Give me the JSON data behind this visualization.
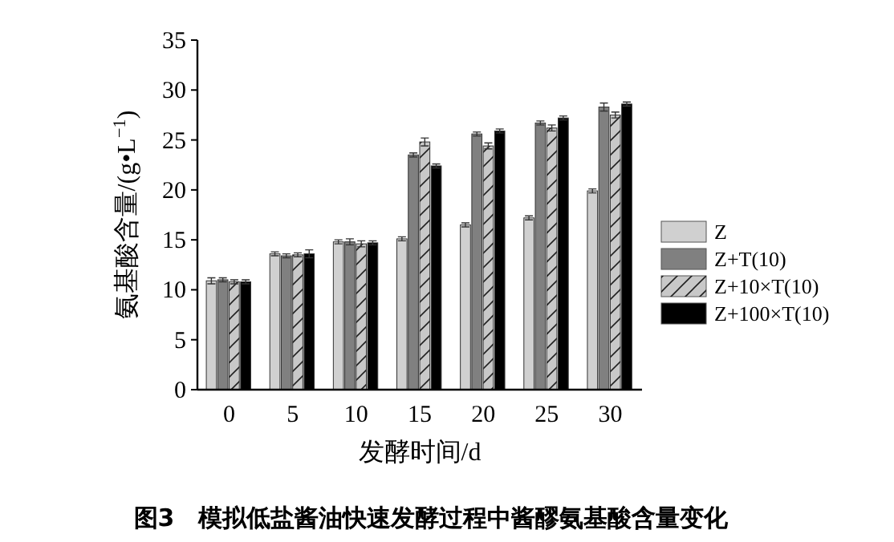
{
  "chart_data": {
    "type": "bar",
    "xlabel": "发酵时间/d",
    "ylabel": "氨基酸含量/(g•L$^{−1}$)",
    "annotations": [
      "图3　模拟低盐酱油快速发酵过程中酱醪氨基酸含量变化"
    ],
    "categories": [
      "0",
      "5",
      "10",
      "15",
      "20",
      "25",
      "30"
    ],
    "series": [
      {
        "name": "Z",
        "color": "#d0d0d0",
        "values": [
          10.9,
          13.6,
          14.8,
          15.1,
          16.5,
          17.2,
          19.9
        ],
        "errors": [
          0.3,
          0.2,
          0.2,
          0.2,
          0.2,
          0.2,
          0.2
        ]
      },
      {
        "name": "Z+T(10)",
        "color": "#808080",
        "values": [
          11.0,
          13.4,
          14.8,
          23.5,
          25.6,
          26.7,
          28.3
        ],
        "errors": [
          0.2,
          0.2,
          0.3,
          0.2,
          0.2,
          0.2,
          0.4
        ]
      },
      {
        "name": "Z+10×T(10)",
        "color": "#c8c8c8",
        "values": [
          10.8,
          13.5,
          14.6,
          24.8,
          24.4,
          26.2,
          27.5
        ],
        "errors": [
          0.2,
          0.2,
          0.3,
          0.4,
          0.3,
          0.3,
          0.3
        ]
      },
      {
        "name": "Z+100×T(10)",
        "color": "#000000",
        "values": [
          10.8,
          13.6,
          14.7,
          22.4,
          25.9,
          27.2,
          28.6
        ],
        "errors": [
          0.2,
          0.4,
          0.2,
          0.2,
          0.2,
          0.2,
          0.2
        ]
      }
    ],
    "ylim": [
      0,
      35
    ],
    "yticks": [
      0,
      5,
      10,
      15,
      20,
      25,
      30,
      35
    ],
    "legend": "right",
    "grid": false
  }
}
